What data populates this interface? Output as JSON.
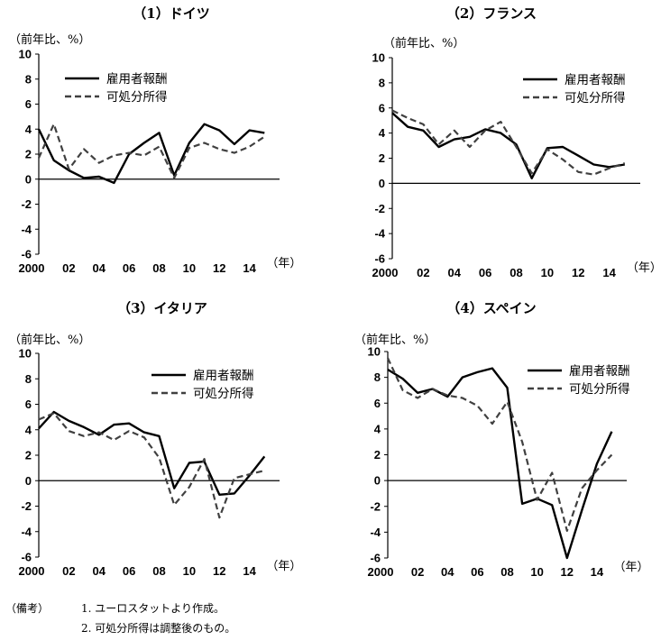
{
  "notes": {
    "prefix": "（備考）",
    "items": [
      "1. ユーロスタットより作成。",
      "2. 可処分所得は調整後のもの。"
    ]
  },
  "x_tick_labels": [
    "2000",
    "02",
    "04",
    "06",
    "08",
    "10",
    "12",
    "14"
  ],
  "x_unit": "（年）",
  "chart_data": [
    {
      "type": "line",
      "title": "（1）ドイツ",
      "ylabel": "（前年比、%）",
      "xlabel": "（年）",
      "x": [
        2000,
        2001,
        2002,
        2003,
        2004,
        2005,
        2006,
        2007,
        2008,
        2009,
        2010,
        2011,
        2012,
        2013,
        2014,
        2015
      ],
      "ylim": [
        -6,
        10
      ],
      "yticks": [
        10,
        8,
        6,
        4,
        2,
        0,
        -2,
        -4,
        -6
      ],
      "legend": "top-left",
      "series": [
        {
          "name": "雇用者報酬",
          "style": "solid",
          "color": "#000000",
          "values": [
            4.0,
            1.5,
            0.7,
            0.1,
            0.2,
            -0.3,
            2.0,
            2.9,
            3.7,
            0.3,
            2.9,
            4.4,
            3.9,
            2.8,
            3.9,
            3.7
          ]
        },
        {
          "name": "可処分所得",
          "style": "dashed",
          "color": "#404040",
          "values": [
            1.7,
            4.4,
            0.8,
            2.4,
            1.3,
            1.9,
            2.1,
            1.9,
            2.6,
            0.1,
            2.5,
            2.9,
            2.4,
            2.1,
            2.6,
            3.4
          ]
        }
      ]
    },
    {
      "type": "line",
      "title": "（2）フランス",
      "ylabel": "（前年比、%）",
      "xlabel": "（年）",
      "x": [
        2000,
        2001,
        2002,
        2003,
        2004,
        2005,
        2006,
        2007,
        2008,
        2009,
        2010,
        2011,
        2012,
        2013,
        2014,
        2015
      ],
      "ylim": [
        -6,
        10
      ],
      "yticks": [
        10,
        8,
        6,
        4,
        2,
        0,
        -2,
        -4,
        -6
      ],
      "legend": "top-right",
      "series": [
        {
          "name": "雇用者報酬",
          "style": "solid",
          "color": "#000000",
          "values": [
            5.6,
            4.5,
            4.2,
            2.9,
            3.5,
            3.7,
            4.3,
            4.0,
            3.1,
            0.4,
            2.8,
            2.9,
            2.2,
            1.5,
            1.3,
            1.5
          ]
        },
        {
          "name": "可処分所得",
          "style": "dashed",
          "color": "#404040",
          "values": [
            5.8,
            5.2,
            4.7,
            3.1,
            4.2,
            2.9,
            4.2,
            4.9,
            2.9,
            0.8,
            2.7,
            1.9,
            0.9,
            0.7,
            1.2,
            1.6
          ]
        }
      ]
    },
    {
      "type": "line",
      "title": "（3）イタリア",
      "ylabel": "（前年比、%）",
      "xlabel": "（年）",
      "x": [
        2000,
        2001,
        2002,
        2003,
        2004,
        2005,
        2006,
        2007,
        2008,
        2009,
        2010,
        2011,
        2012,
        2013,
        2014,
        2015
      ],
      "ylim": [
        -6,
        10
      ],
      "yticks": [
        10,
        8,
        6,
        4,
        2,
        0,
        -2,
        -4,
        -6
      ],
      "legend": "top-right",
      "series": [
        {
          "name": "雇用者報酬",
          "style": "solid",
          "color": "#000000",
          "values": [
            4.1,
            5.4,
            4.7,
            4.2,
            3.6,
            4.4,
            4.5,
            3.8,
            3.5,
            -0.6,
            1.4,
            1.5,
            -1.1,
            -1.0,
            0.4,
            1.9
          ]
        },
        {
          "name": "可処分所得",
          "style": "dashed",
          "color": "#404040",
          "values": [
            4.8,
            5.3,
            3.9,
            3.5,
            3.8,
            3.2,
            3.9,
            3.4,
            1.8,
            -1.9,
            -0.5,
            1.7,
            -2.9,
            0.2,
            0.5,
            0.8
          ]
        }
      ]
    },
    {
      "type": "line",
      "title": "（4）スペイン",
      "ylabel": "（前年比、%）",
      "xlabel": "（年）",
      "x": [
        2000,
        2001,
        2002,
        2003,
        2004,
        2005,
        2006,
        2007,
        2008,
        2009,
        2010,
        2011,
        2012,
        2013,
        2014,
        2015
      ],
      "ylim": [
        -6,
        10
      ],
      "yticks": [
        10,
        8,
        6,
        4,
        2,
        0,
        -2,
        -4,
        -6
      ],
      "legend": "top-right",
      "series": [
        {
          "name": "雇用者報酬",
          "style": "solid",
          "color": "#000000",
          "values": [
            8.6,
            7.9,
            6.8,
            7.1,
            6.5,
            8.0,
            8.4,
            8.7,
            7.2,
            -1.8,
            -1.4,
            -1.9,
            -6.0,
            -2.3,
            1.3,
            3.8
          ]
        },
        {
          "name": "可処分所得",
          "style": "dashed",
          "color": "#404040",
          "values": [
            9.5,
            7.0,
            6.4,
            7.1,
            6.6,
            6.4,
            5.8,
            4.4,
            6.1,
            3.0,
            -1.5,
            0.6,
            -3.9,
            -0.6,
            0.8,
            2.0
          ]
        }
      ]
    }
  ]
}
